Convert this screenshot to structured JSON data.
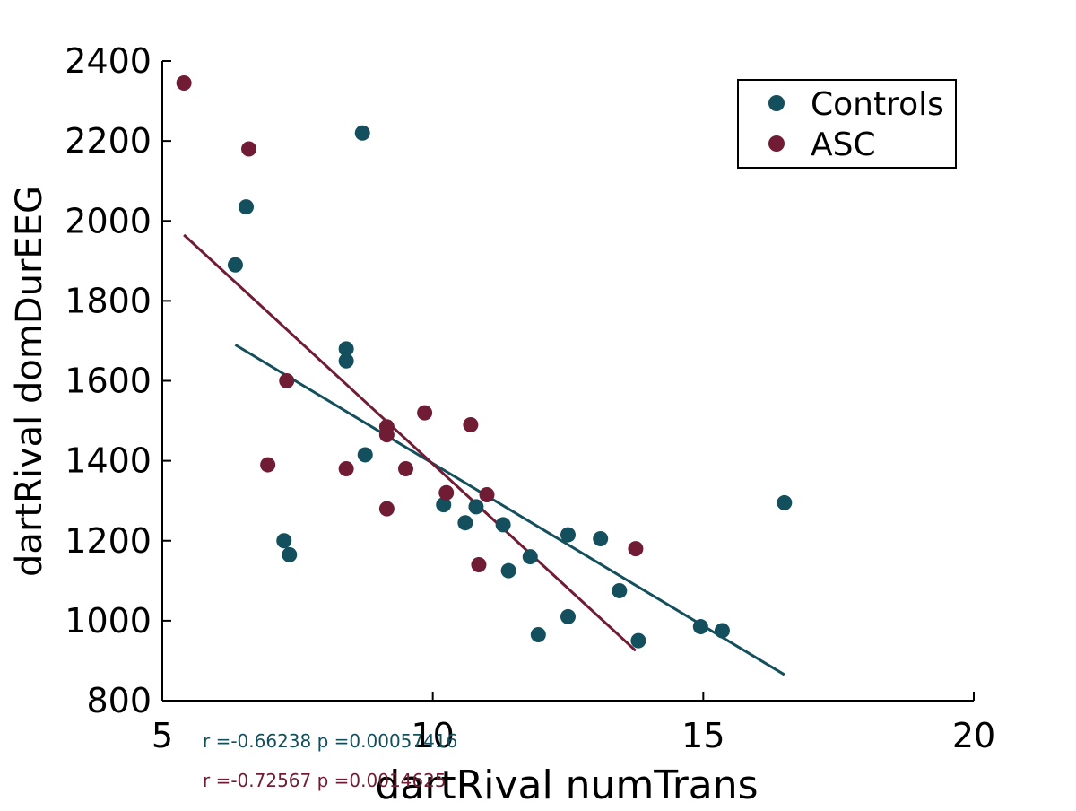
{
  "chart_data": {
    "type": "scatter",
    "xlabel": "dartRival numTrans",
    "ylabel": "dartRival domDurEEG",
    "xlim": [
      5,
      20
    ],
    "ylim": [
      800,
      2400
    ],
    "xticks": [
      "5",
      "10",
      "15",
      "20"
    ],
    "yticks": [
      "800",
      "1000",
      "1200",
      "1400",
      "1600",
      "1800",
      "2000",
      "2200",
      "2400"
    ],
    "grid": false,
    "legend_position": "top-right",
    "series": [
      {
        "name": "Controls",
        "color": "#134f5c",
        "points": [
          [
            6.35,
            1890
          ],
          [
            6.55,
            2035
          ],
          [
            7.25,
            1200
          ],
          [
            7.35,
            1165
          ],
          [
            8.4,
            1680
          ],
          [
            8.4,
            1650
          ],
          [
            8.7,
            2220
          ],
          [
            8.75,
            1415
          ],
          [
            10.2,
            1290
          ],
          [
            10.6,
            1245
          ],
          [
            10.8,
            1285
          ],
          [
            11.3,
            1240
          ],
          [
            11.4,
            1125
          ],
          [
            11.8,
            1160
          ],
          [
            11.95,
            965
          ],
          [
            12.5,
            1215
          ],
          [
            12.5,
            1010
          ],
          [
            13.1,
            1205
          ],
          [
            13.45,
            1075
          ],
          [
            13.8,
            950
          ],
          [
            14.95,
            985
          ],
          [
            15.35,
            975
          ],
          [
            16.5,
            1295
          ]
        ],
        "fit": {
          "x": [
            6.35,
            16.5
          ],
          "y": [
            1690,
            865
          ]
        },
        "stats": "r =-0.66238   p =0.00057416"
      },
      {
        "name": "ASC",
        "color": "#701c34",
        "points": [
          [
            5.4,
            2345
          ],
          [
            6.6,
            2180
          ],
          [
            6.95,
            1390
          ],
          [
            7.3,
            1600
          ],
          [
            8.4,
            1380
          ],
          [
            9.15,
            1485
          ],
          [
            9.15,
            1465
          ],
          [
            9.15,
            1280
          ],
          [
            9.5,
            1380
          ],
          [
            9.85,
            1520
          ],
          [
            10.25,
            1320
          ],
          [
            10.7,
            1490
          ],
          [
            10.85,
            1140
          ],
          [
            11.0,
            1315
          ],
          [
            13.75,
            1180
          ]
        ],
        "fit": {
          "x": [
            5.4,
            13.75
          ],
          "y": [
            1965,
            925
          ]
        },
        "stats": "r =-0.72567   p =0.0014625"
      }
    ]
  }
}
